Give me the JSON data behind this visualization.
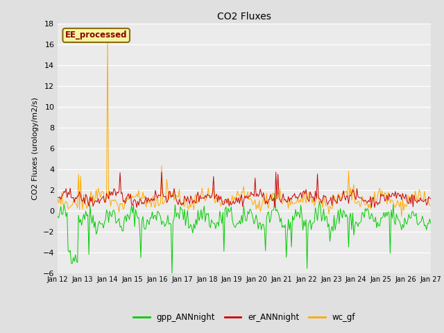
{
  "title": "CO2 Fluxes",
  "ylabel": "CO2 Fluxes (urology/m2/s)",
  "xlabel": "",
  "ylim": [
    -6,
    18
  ],
  "yticks": [
    -6,
    -4,
    -2,
    0,
    2,
    4,
    6,
    8,
    10,
    12,
    14,
    16,
    18
  ],
  "xtick_labels": [
    "Jan 12",
    "Jan 13",
    "Jan 14",
    "Jan 15",
    "Jan 16",
    "Jan 17",
    "Jan 18",
    "Jan 19",
    "Jan 20",
    "Jan 21",
    "Jan 22",
    "Jan 23",
    "Jan 24",
    "Jan 25",
    "Jan 26",
    "Jan 27"
  ],
  "fig_bg_color": "#e0e0e0",
  "plot_bg_color": "#ebebeb",
  "annotation_text": "EE_processed",
  "annotation_color": "#8b0000",
  "annotation_bg": "#f5f5a0",
  "annotation_border": "#8b6914",
  "colors": {
    "gpp_ANNnight": "#00cc00",
    "er_ANNnight": "#cc0000",
    "wc_gf": "#ffaa00"
  },
  "legend_labels": [
    "gpp_ANNnight",
    "er_ANNnight",
    "wc_gf"
  ],
  "n_points": 360,
  "seed": 42
}
